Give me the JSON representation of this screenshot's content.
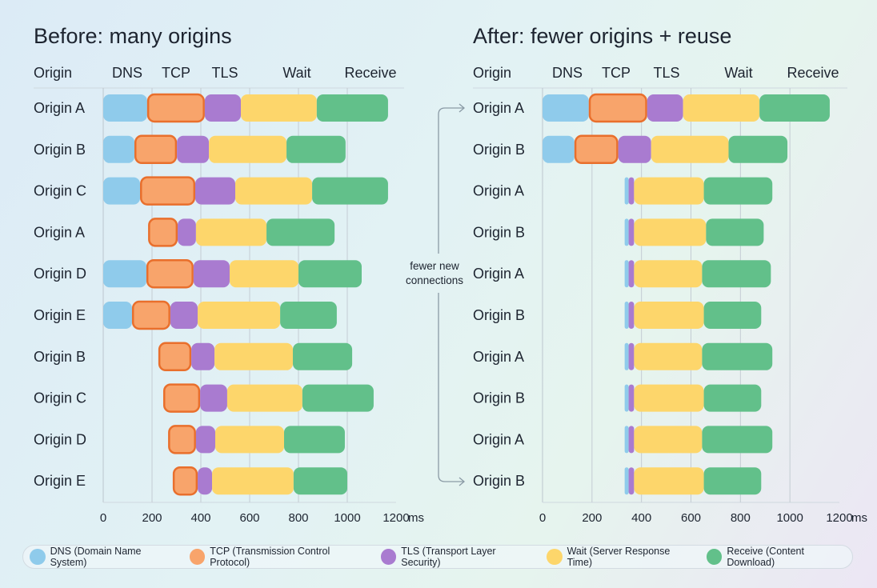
{
  "colors": {
    "DNS": "#8fcbeb",
    "TCP": "#f8a46b",
    "TCP_border": "#e96f2c",
    "TLS": "#a97bd0",
    "Wait": "#fdd66b",
    "Receive": "#62c08a"
  },
  "annotation": "fewer new connections",
  "legend": [
    {
      "key": "DNS",
      "label": "DNS (Domain Name System)"
    },
    {
      "key": "TCP",
      "label": "TCP (Transmission Control Protocol)"
    },
    {
      "key": "TLS",
      "label": "TLS (Transport Layer Security)"
    },
    {
      "key": "Wait",
      "label": "Wait (Server Response Time)"
    },
    {
      "key": "Receive",
      "label": "Receive (Content Download)"
    }
  ],
  "chart_data": [
    {
      "type": "bar",
      "subtype": "waterfall",
      "title": "Before: many origins",
      "column_header": "Origin",
      "phase_headers": [
        "DNS",
        "TCP",
        "TLS",
        "Wait",
        "Receive"
      ],
      "xlim": [
        0,
        1200
      ],
      "xticks": [
        0,
        200,
        400,
        600,
        800,
        1000,
        1200
      ],
      "xunit": "ms",
      "grid": true,
      "rows": [
        {
          "label": "Origin A",
          "DNS": [
            0,
            180
          ],
          "TCP": [
            180,
            416
          ],
          "TLS": [
            416,
            564
          ],
          "Wait": [
            564,
            875
          ],
          "Receive": [
            875,
            1167
          ]
        },
        {
          "label": "Origin B",
          "DNS": [
            0,
            128
          ],
          "TCP": [
            128,
            302
          ],
          "TLS": [
            302,
            433
          ],
          "Wait": [
            433,
            751
          ],
          "Receive": [
            751,
            993
          ]
        },
        {
          "label": "Origin C",
          "DNS": [
            0,
            151
          ],
          "TCP": [
            151,
            377
          ],
          "TLS": [
            377,
            541
          ],
          "Wait": [
            541,
            856
          ],
          "Receive": [
            856,
            1167
          ]
        },
        {
          "label": "Origin A",
          "TCP": [
            184,
            305
          ],
          "TLS": [
            305,
            380
          ],
          "Wait": [
            380,
            669
          ],
          "Receive": [
            669,
            948
          ]
        },
        {
          "label": "Origin D",
          "DNS": [
            0,
            177
          ],
          "TCP": [
            177,
            370
          ],
          "TLS": [
            370,
            518
          ],
          "Wait": [
            518,
            800
          ],
          "Receive": [
            800,
            1059
          ]
        },
        {
          "label": "Origin E",
          "DNS": [
            0,
            118
          ],
          "TCP": [
            118,
            275
          ],
          "TLS": [
            275,
            387
          ],
          "Wait": [
            387,
            725
          ],
          "Receive": [
            725,
            957
          ]
        },
        {
          "label": "Origin B",
          "TCP": [
            226,
            361
          ],
          "TLS": [
            361,
            456
          ],
          "Wait": [
            456,
            777
          ],
          "Receive": [
            777,
            1020
          ]
        },
        {
          "label": "Origin C",
          "TCP": [
            246,
            397
          ],
          "TLS": [
            397,
            508
          ],
          "Wait": [
            508,
            816
          ],
          "Receive": [
            816,
            1108
          ]
        },
        {
          "label": "Origin D",
          "TCP": [
            266,
            380
          ],
          "TLS": [
            380,
            459
          ],
          "Wait": [
            459,
            741
          ],
          "Receive": [
            741,
            990
          ]
        },
        {
          "label": "Origin E",
          "TCP": [
            285,
            387
          ],
          "TLS": [
            387,
            446
          ],
          "Wait": [
            446,
            780
          ],
          "Receive": [
            780,
            1000
          ]
        }
      ]
    },
    {
      "type": "bar",
      "subtype": "waterfall",
      "title": "After: fewer origins + reuse",
      "column_header": "Origin",
      "phase_headers": [
        "DNS",
        "TCP",
        "TLS",
        "Wait",
        "Receive"
      ],
      "xlim": [
        0,
        1200
      ],
      "xticks": [
        0,
        200,
        400,
        600,
        800,
        1000,
        1200
      ],
      "xunit": "ms",
      "grid": true,
      "rows": [
        {
          "label": "Origin A",
          "DNS": [
            0,
            187
          ],
          "TCP": [
            187,
            423
          ],
          "TLS": [
            423,
            568
          ],
          "Wait": [
            568,
            877
          ],
          "Receive": [
            877,
            1161
          ]
        },
        {
          "label": "Origin B",
          "DNS": [
            0,
            129
          ],
          "TCP": [
            129,
            306
          ],
          "TLS": [
            306,
            439
          ],
          "Wait": [
            439,
            752
          ],
          "Receive": [
            752,
            990
          ]
        },
        {
          "label": "Origin A",
          "DNS": [
            332,
            348
          ],
          "TLS": [
            348,
            370
          ],
          "Wait": [
            370,
            652
          ],
          "Receive": [
            652,
            929
          ]
        },
        {
          "label": "Origin B",
          "DNS": [
            332,
            348
          ],
          "TLS": [
            348,
            370
          ],
          "Wait": [
            370,
            661
          ],
          "Receive": [
            661,
            894
          ]
        },
        {
          "label": "Origin A",
          "DNS": [
            332,
            348
          ],
          "TLS": [
            348,
            370
          ],
          "Wait": [
            370,
            645
          ],
          "Receive": [
            645,
            923
          ]
        },
        {
          "label": "Origin B",
          "DNS": [
            332,
            348
          ],
          "TLS": [
            348,
            370
          ],
          "Wait": [
            370,
            652
          ],
          "Receive": [
            652,
            884
          ]
        },
        {
          "label": "Origin A",
          "DNS": [
            332,
            348
          ],
          "TLS": [
            348,
            370
          ],
          "Wait": [
            370,
            645
          ],
          "Receive": [
            645,
            929
          ]
        },
        {
          "label": "Origin B",
          "DNS": [
            332,
            348
          ],
          "TLS": [
            348,
            370
          ],
          "Wait": [
            370,
            652
          ],
          "Receive": [
            652,
            884
          ]
        },
        {
          "label": "Origin A",
          "DNS": [
            332,
            348
          ],
          "TLS": [
            348,
            370
          ],
          "Wait": [
            370,
            645
          ],
          "Receive": [
            645,
            929
          ]
        },
        {
          "label": "Origin B",
          "DNS": [
            332,
            348
          ],
          "TLS": [
            348,
            370
          ],
          "Wait": [
            370,
            652
          ],
          "Receive": [
            652,
            884
          ]
        }
      ]
    }
  ]
}
